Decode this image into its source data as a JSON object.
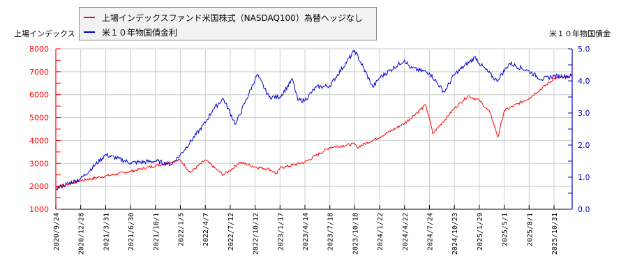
{
  "chart_data": {
    "type": "line",
    "title": "",
    "legend": [
      {
        "name": "上場インデックスファンド米国株式（NASDAQ100）為替ヘッジなし",
        "color": "#ff0000"
      },
      {
        "name": "米１０年物国債金利",
        "color": "#0000cc"
      }
    ],
    "left_axis": {
      "label": "上場インデックス",
      "color": "#ff0000",
      "ylim": [
        1000,
        8000
      ],
      "ticks": [
        "1000",
        "2000",
        "3000",
        "4000",
        "5000",
        "6000",
        "7000",
        "8000"
      ]
    },
    "right_axis": {
      "label": "米１０年物国債金",
      "color": "#0000cc",
      "ylim": [
        0.0,
        5.0
      ],
      "ticks": [
        "0.0",
        "1.0",
        "2.0",
        "3.0",
        "4.0",
        "5.0"
      ]
    },
    "x_ticks": [
      "2020/9/24",
      "2020/12/28",
      "2021/3/31",
      "2021/6/30",
      "2021/10/1",
      "2022/1/5",
      "2022/4/7",
      "2022/7/12",
      "2022/10/12",
      "2023/1/17",
      "2023/4/14",
      "2023/7/18",
      "2023/10/18",
      "2024/1/22",
      "2024/4/22",
      "2024/7/24",
      "2024/10/23",
      "2025/1/29",
      "2025/5/1",
      "2025/8/1",
      "2025/10/31"
    ],
    "grid": true,
    "legend_position": "top-left",
    "series": [
      {
        "name": "上場インデックスファンド米国株式（NASDAQ100）為替ヘッジなし",
        "axis": "left",
        "x": [
          "2020/9/24",
          "2020/12/28",
          "2021/3/31",
          "2021/6/30",
          "2021/10/1",
          "2022/1/5",
          "2022/2/10",
          "2022/4/7",
          "2022/6/15",
          "2022/7/12",
          "2022/8/16",
          "2022/10/12",
          "2022/12/5",
          "2023/1/5",
          "2023/1/17",
          "2023/4/14",
          "2023/7/18",
          "2023/10/18",
          "2023/10/27",
          "2024/1/22",
          "2024/4/22",
          "2024/7/10",
          "2024/7/24",
          "2024/8/5",
          "2024/10/23",
          "2024/12/16",
          "2025/1/29",
          "2025/3/10",
          "2025/4/8",
          "2025/5/1",
          "2025/8/1",
          "2025/10/31",
          "2026/1/5"
        ],
        "values": [
          1950,
          2250,
          2450,
          2650,
          2900,
          3150,
          2600,
          3150,
          2500,
          2700,
          3050,
          2850,
          2750,
          2550,
          2800,
          3050,
          3700,
          3850,
          3700,
          4150,
          4750,
          5550,
          4950,
          4300,
          5400,
          5950,
          5750,
          5200,
          4150,
          5300,
          5850,
          6700,
          6800
        ]
      },
      {
        "name": "米１０年物国債金利",
        "axis": "right",
        "x": [
          "2020/9/24",
          "2020/12/28",
          "2021/3/31",
          "2021/6/30",
          "2021/10/1",
          "2021/12/1",
          "2022/1/5",
          "2022/4/7",
          "2022/5/6",
          "2022/6/15",
          "2022/8/1",
          "2022/10/20",
          "2022/12/5",
          "2023/1/17",
          "2023/3/2",
          "2023/3/20",
          "2023/4/14",
          "2023/5/26",
          "2023/7/18",
          "2023/10/18",
          "2023/12/27",
          "2024/1/22",
          "2024/4/22",
          "2024/5/15",
          "2024/7/24",
          "2024/9/16",
          "2024/10/23",
          "2025/1/14",
          "2025/1/29",
          "2025/4/4",
          "2025/5/21",
          "2025/8/1",
          "2025/9/16",
          "2025/10/31",
          "2026/1/5"
        ],
        "values": [
          0.65,
          0.95,
          1.7,
          1.45,
          1.5,
          1.4,
          1.7,
          2.7,
          3.1,
          3.45,
          2.65,
          4.2,
          3.5,
          3.5,
          4.05,
          3.4,
          3.4,
          3.8,
          3.85,
          4.95,
          3.8,
          4.1,
          4.65,
          4.4,
          4.25,
          3.65,
          4.2,
          4.75,
          4.55,
          4.0,
          4.55,
          4.3,
          4.05,
          4.15,
          4.15
        ]
      }
    ]
  }
}
